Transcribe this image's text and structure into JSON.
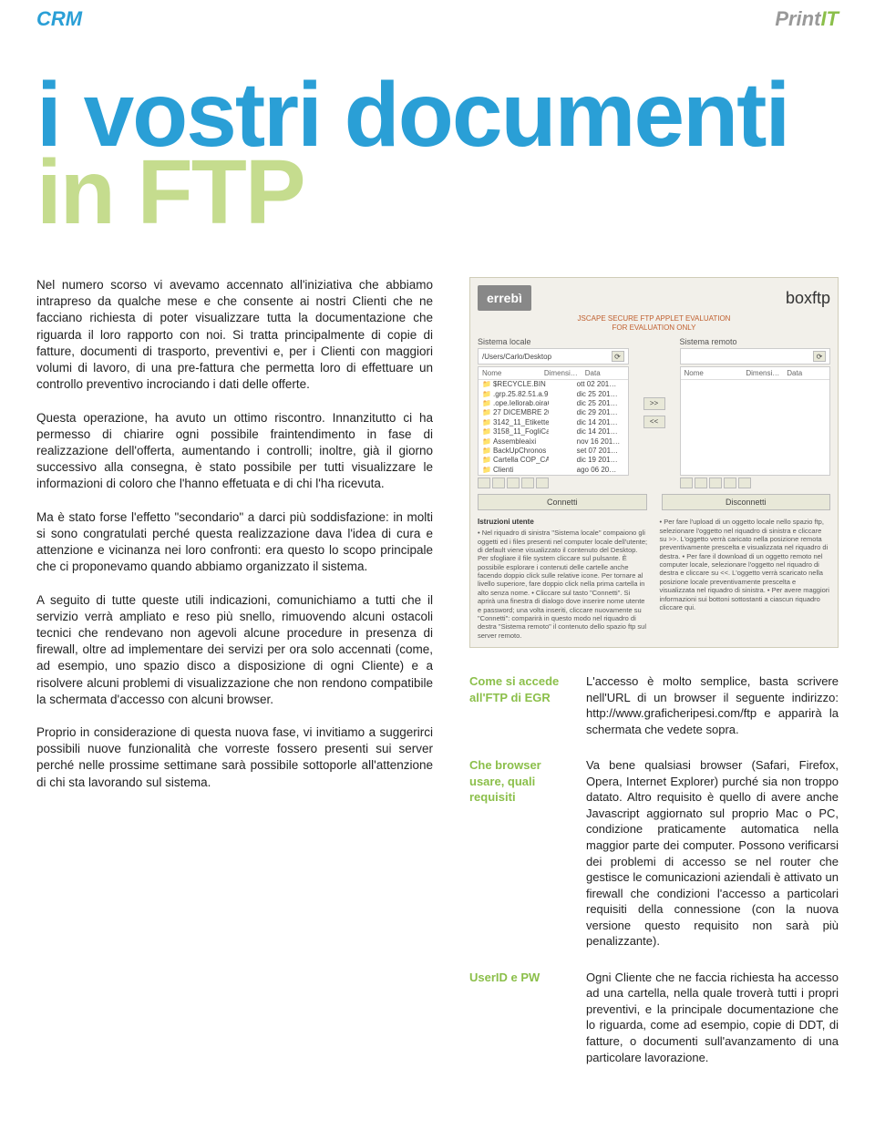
{
  "header": {
    "section_label": "CRM",
    "brand_part1": "Print",
    "brand_part2": "IT"
  },
  "title": {
    "line1": "i vostri documenti",
    "line2": "in FTP"
  },
  "article": {
    "p1": "Nel numero scorso vi avevamo accennato all'iniziativa che abbiamo intrapreso da qualche mese e che consente ai nostri Clienti che ne facciano richiesta di poter visualizzare tutta la documentazione che riguarda il loro rapporto con noi.",
    "p2": "Si tratta principalmente di copie di fatture, documenti di trasporto, preventivi e, per i Clienti con maggiori volumi di lavoro, di una pre-fattura che permetta loro di effettuare un controllo preventivo incrociando i dati delle offerte.",
    "p3": "Questa operazione, ha avuto un ottimo riscontro. Innanzitutto ci ha permesso di chiarire ogni possibile fraintendimento in fase di realizzazione dell'offerta, aumentando i controlli; inoltre, già il giorno successivo alla consegna, è stato possibile per tutti visualizzare le informazioni di coloro che l'hanno effetuata e di chi l'ha ricevuta.",
    "p4": "Ma è stato forse l'effetto \"secondario\" a darci più soddisfazione: in molti si sono congratulati perché questa realizzazione dava l'idea di cura e attenzione e vicinanza nei loro confronti: era questo lo scopo principale che ci proponevamo quando abbiamo organizzato il sistema.",
    "p5": "A seguito di tutte queste utili indicazioni, comunichiamo a tutti che il servizio verrà ampliato e reso più snello, rimuovendo alcuni ostacoli tecnici che rendevano non agevoli alcune procedure in presenza di firewall, oltre ad implementare dei servizi per ora solo accennati (come, ad esempio, uno spazio disco a disposizione di ogni Cliente) e a risolvere alcuni problemi di visualizzazione che non rendono compatibile la schermata d'accesso con alcuni browser.",
    "p6": "Proprio in considerazione di questa nuova fase, vi invitiamo a suggerirci possibili nuove funzionalità che vorreste fossero presenti sui server perché nelle prossime settimane sarà possibile sottoporle all'attenzione di chi sta lavorando sul sistema."
  },
  "screenshot": {
    "brand": "errebì",
    "product": "boxftp",
    "eval_l1": "JSCAPE SECURE FTP APPLET EVALUATION",
    "eval_l2": "FOR EVALUATION ONLY",
    "local_label": "Sistema locale",
    "remote_label": "Sistema remoto",
    "path": "/Users/Carlo/Desktop",
    "col_name": "Nome",
    "col_dim": "Dimensi…",
    "col_date": "Data",
    "files": [
      {
        "n": "$RECYCLE.BIN",
        "d": "",
        "t": "ott 02 201…"
      },
      {
        "n": ".grp.25.82.51.a.9…",
        "d": "",
        "t": "dic 25 201…"
      },
      {
        "n": ".ope.Iellorab.oiraC.r…",
        "d": "",
        "t": "dic 25 201…"
      },
      {
        "n": "27 DICEMBRE 201…",
        "d": "",
        "t": "dic 29 201…"
      },
      {
        "n": "3142_11_Etikette…",
        "d": "",
        "t": "dic 14 201…"
      },
      {
        "n": "3158_11_FogliCava…",
        "d": "",
        "t": "dic 14 201…"
      },
      {
        "n": "Assembleaixi",
        "d": "",
        "t": "nov 16 201…"
      },
      {
        "n": "BackUpChronos",
        "d": "",
        "t": "set 07 201…"
      },
      {
        "n": "Cartella COP_CATA…",
        "d": "",
        "t": "dic 19 201…"
      },
      {
        "n": "Clienti",
        "d": "",
        "t": "ago 06 20…"
      },
      {
        "n": "Commerciale…",
        "d": "",
        "t": "nov 07 201…"
      }
    ],
    "btn_right": ">>",
    "btn_left": "<<",
    "connect": "Connetti",
    "disconnect": "Disconnetti",
    "instr_title": "Istruzioni utente",
    "instr_left": "• Nel riquadro di sinistra \"Sistema locale\" compaiono gli oggetti ed i files presenti nel computer locale dell'utente; di default viene visualizzato il contenuto del Desktop. Per sfogliare il file system cliccare sul pulsante. È possibile esplorare i contenuti delle cartelle anche facendo doppio click sulle relative icone. Per tornare al livello superiore, fare doppio click nella prima cartella in alto senza nome. • Cliccare sul tasto \"Connetti\". Si aprirà una finestra di dialogo dove inserire nome utente e password; una volta inseriti, cliccare nuovamente su \"Connetti\": comparirà in questo modo nel riquadro di destra \"Sistema remoto\" il contenuto dello spazio ftp sul server remoto.",
    "instr_right": "• Per fare l'upload di un oggetto locale nello spazio ftp, selezionare l'oggetto nel riquadro di sinistra e cliccare su >>. L'oggetto verrà caricato nella posizione remota preventivamente prescelta e visualizzata nel riquadro di destra. • Per fare il download di un oggetto remoto nel computer locale, selezionare l'oggetto nel riquadro di destra e cliccare su <<. L'oggetto verrà scaricato nella posizione locale preventivamente prescelta e visualizzata nel riquadro di sinistra. • Per avere maggiori informazioni sui bottoni sottostanti a ciascun riquadro cliccare qui."
  },
  "faq": [
    {
      "q": "Come si accede all'FTP di EGR",
      "a": "L'accesso è molto semplice, basta scrivere nell'URL di un browser il seguente indirizzo: http://www.graficheripesi.com/ftp e apparirà la schermata che vedete sopra."
    },
    {
      "q": "Che browser usare, quali requisiti",
      "a": "Va bene qualsiasi browser (Safari, Firefox, Opera, Internet Explorer) purché sia non troppo datato. Altro requisito è quello di avere anche Javascript aggiornato sul proprio Mac o PC, condizione praticamente automatica nella maggior parte dei computer. Possono verificarsi dei problemi di accesso se nel router che gestisce le comunicazioni aziendali è attivato un firewall che condizioni l'accesso a particolari requisiti della connessione (con la nuova versione questo requisito non sarà più penalizzante)."
    },
    {
      "q": "UserID e PW",
      "a": "Ogni Cliente che ne faccia richiesta ha accesso ad una cartella, nella quale troverà tutti i propri preventivi, e la principale documentazione che lo riguarda, come ad esempio, copie di DDT, di fatture, o documenti sull'avanzamento di una particolare lavorazione."
    }
  ]
}
